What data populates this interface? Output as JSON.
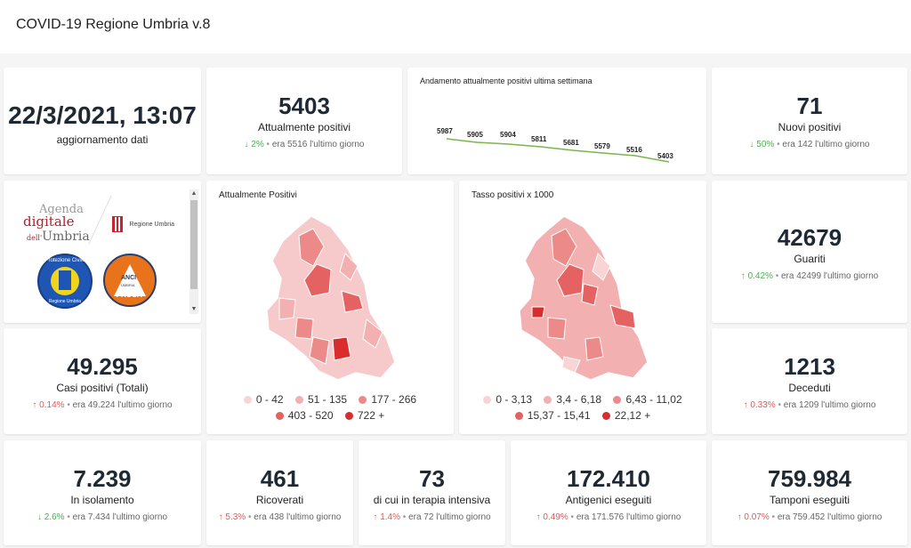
{
  "app": {
    "title": "COVID-19 Regione Umbria v.8"
  },
  "update": {
    "datetime": "22/3/2021, 13:07",
    "label": "aggiornamento dati"
  },
  "attualmente_positivi": {
    "value": "5403",
    "label": "Attualmente positivi",
    "arrow": "↓",
    "pct": "2%",
    "prev": "era 5516 l'ultimo giorno"
  },
  "trend": {
    "title": "Andamento attualmente positivi ultima settimana",
    "labels": [
      "5987",
      "5905",
      "5904",
      "5811",
      "5681",
      "5579",
      "5516",
      "5403"
    ],
    "line_color": "#7ab648"
  },
  "nuovi_positivi": {
    "value": "71",
    "label": "Nuovi positivi",
    "arrow": "↓",
    "pct": "50%",
    "prev": "era 142 l'ultimo giorno"
  },
  "logos": {
    "agenda_line1": "Agenda",
    "agenda_line2": "digitale",
    "agenda_line3_prefix": "dell'",
    "agenda_line3": "Umbria",
    "regione": "Regione Umbria",
    "protezione_civile": "Protezione Civile",
    "protezione_sub": "Regione Umbria",
    "anci": "ANCI",
    "umbria_small": "UMBRIA",
    "prociv": "PROCIV"
  },
  "map_positivi": {
    "title": "Attualmente Positivi",
    "legend": [
      {
        "label": "0 - 42",
        "color": "#f8d4d4"
      },
      {
        "label": "51 - 135",
        "color": "#f3b0b0"
      },
      {
        "label": "177 - 266",
        "color": "#ec8a8a"
      },
      {
        "label": "403 - 520",
        "color": "#e56262"
      },
      {
        "label": "722 +",
        "color": "#d92d2d"
      }
    ]
  },
  "map_tasso": {
    "title": "Tasso positivi x 1000",
    "legend": [
      {
        "label": "0 - 3,13",
        "color": "#f8d4d4"
      },
      {
        "label": "3,4 - 6,18",
        "color": "#f3b0b0"
      },
      {
        "label": "6,43 - 11,02",
        "color": "#ec8a8a"
      },
      {
        "label": "15,37 - 15,41",
        "color": "#e56262"
      },
      {
        "label": "22,12 +",
        "color": "#d92d2d"
      }
    ]
  },
  "guariti": {
    "value": "42679",
    "label": "Guariti",
    "arrow": "↑",
    "pct": "0.42%",
    "prev": "era 42499 l'ultimo giorno"
  },
  "casi_positivi": {
    "value": "49.295",
    "label": "Casi positivi (Totali)",
    "arrow": "↑",
    "pct": "0.14%",
    "prev": "era 49.224 l'ultimo giorno"
  },
  "deceduti": {
    "value": "1213",
    "label": "Deceduti",
    "arrow": "↑",
    "pct": "0.33%",
    "prev": "era 1209 l'ultimo giorno"
  },
  "isolamento": {
    "value": "7.239",
    "label": "In isolamento",
    "arrow": "↓",
    "pct": "2.6%",
    "prev": "era 7.434 l'ultimo giorno"
  },
  "ricoverati": {
    "value": "461",
    "label": "Ricoverati",
    "arrow": "↑",
    "pct": "5.3%",
    "prev": "era 438 l'ultimo giorno"
  },
  "terapia": {
    "value": "73",
    "label": "di cui in terapia intensiva",
    "arrow": "↑",
    "pct": "1.4%",
    "prev": "era 72 l'ultimo giorno"
  },
  "antigenici": {
    "value": "172.410",
    "label": "Antigenici eseguiti",
    "arrow": "↑",
    "pct": "0.49%",
    "prev": "era 171.576 l'ultimo giorno"
  },
  "tamponi": {
    "value": "759.984",
    "label": "Tamponi eseguiti",
    "arrow": "↑",
    "pct": "0.07%",
    "prev": "era 759.452 l'ultimo giorno"
  }
}
